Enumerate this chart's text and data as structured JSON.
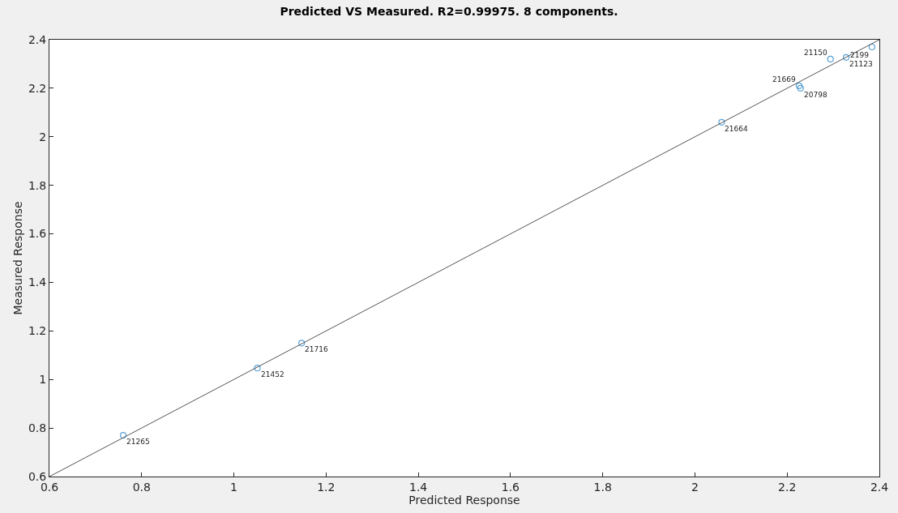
{
  "chart_data": {
    "type": "scatter",
    "title": "Predicted VS Measured. R2=0.99975. 8 components.",
    "xlabel": "Predicted Response",
    "ylabel": "Measured Response",
    "xlim": [
      0.6,
      2.4
    ],
    "ylim": [
      0.6,
      2.4
    ],
    "xticks": [
      0.6,
      0.8,
      1,
      1.2,
      1.4,
      1.6,
      1.8,
      2,
      2.2,
      2.4
    ],
    "yticks": [
      0.6,
      0.8,
      1,
      1.2,
      1.4,
      1.6,
      1.8,
      2,
      2.2,
      2.4
    ],
    "marker": "circle",
    "series": [
      {
        "color": "#5aa2d8",
        "x": [
          0.76,
          1.051,
          1.147,
          2.058,
          2.226,
          2.229,
          2.294,
          2.328,
          2.384
        ],
        "values": [
          0.77,
          1.047,
          1.15,
          2.06,
          2.21,
          2.2,
          2.32,
          2.327,
          2.37
        ]
      },
      {
        "type": "line",
        "color": "#555555",
        "marker": "none",
        "x": [
          0.6,
          2.4
        ],
        "values": [
          0.6,
          2.4
        ]
      }
    ],
    "annotations": [
      {
        "text": "21265",
        "x": 0.76,
        "y": 0.77
      },
      {
        "text": "21452",
        "x": 1.051,
        "y": 1.047
      },
      {
        "text": "21716",
        "x": 1.147,
        "y": 1.15
      },
      {
        "text": "21664",
        "x": 2.058,
        "y": 2.06
      },
      {
        "text": "21669",
        "x": 2.226,
        "y": 2.21
      },
      {
        "text": "20798",
        "x": 2.229,
        "y": 2.2
      },
      {
        "text": "21150",
        "x": 2.294,
        "y": 2.32
      },
      {
        "text": "21123",
        "x": 2.328,
        "y": 2.327
      },
      {
        "text": "2199",
        "x": 2.384,
        "y": 2.37
      }
    ]
  }
}
